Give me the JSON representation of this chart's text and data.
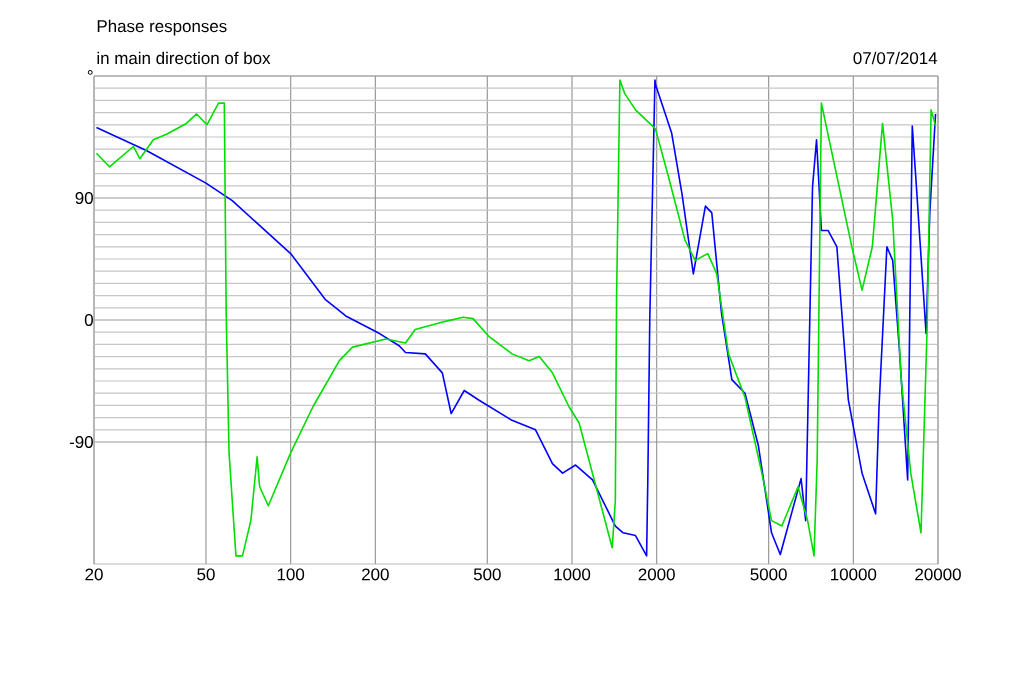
{
  "chart_data": {
    "type": "line",
    "title": "Phase responses",
    "subtitle": "in main direction of box",
    "annotations": [
      "07/07/2014"
    ],
    "log": "x",
    "grid": true,
    "xlim": [
      20,
      20000
    ],
    "ylim": [
      -180,
      180
    ],
    "xticks": [
      20,
      50,
      100,
      200,
      500,
      1000,
      2000,
      5000,
      10000,
      20000
    ],
    "yticks": [
      {
        "value": 180,
        "label": "°"
      },
      90,
      0,
      -90
    ],
    "series": [
      {
        "color": "#0000ff",
        "x": [
          20.4,
          30.7,
          50,
          62,
          100,
          133,
          157,
          207,
          243,
          256,
          301,
          346,
          372,
          414,
          466,
          612,
          742,
          852,
          926,
          1030,
          1183,
          1426,
          1520,
          1682,
          1842,
          1860,
          1890,
          1972,
          1980,
          2260,
          2460,
          2700,
          2980,
          3140,
          3400,
          3700,
          4120,
          4600,
          5120,
          5500,
          6520,
          6770,
          7160,
          7400,
          7700,
          8140,
          8740,
          9600,
          10740,
          12000,
          12340,
          13160,
          13800,
          14560,
          15600,
          16200,
          16700,
          18140,
          18700,
          19600
        ],
        "values": [
          142,
          125,
          101,
          88,
          49,
          15,
          3,
          -10,
          -19,
          -24,
          -25,
          -39,
          -69,
          -52,
          -59,
          -74,
          -81,
          -106,
          -113,
          -107,
          -118,
          -152,
          -157,
          -159,
          -174,
          -118,
          0,
          177,
          174,
          138,
          93,
          34,
          84,
          79,
          5,
          -44,
          -54,
          -93,
          -157,
          -173,
          -117,
          -148,
          98,
          133,
          66,
          66,
          54,
          -59,
          -113,
          -143,
          -64,
          54,
          44,
          -20,
          -118,
          143,
          103,
          -10,
          79,
          152
        ]
      },
      {
        "color": "#00dd00",
        "x": [
          20.4,
          22.7,
          27.6,
          29.1,
          32.5,
          36.2,
          42.6,
          46.3,
          50.4,
          55.4,
          58.1,
          59,
          60.4,
          63.9,
          67.4,
          72.2,
          76,
          77.6,
          83.3,
          100,
          120,
          149,
          166,
          218,
          256,
          277,
          355,
          410,
          445,
          506,
          612,
          704,
          765,
          852,
          976,
          1060,
          1390,
          1426,
          1440,
          1480,
          1540,
          1682,
          1980,
          2200,
          2520,
          2740,
          3040,
          3270,
          3600,
          4120,
          4730,
          5120,
          5570,
          6360,
          6880,
          7250,
          7440,
          7700,
          8600,
          9880,
          10740,
          11680,
          12700,
          13800,
          14800,
          16000,
          17400,
          18300,
          18900,
          19600
        ],
        "values": [
          123,
          113,
          128,
          119,
          133,
          137,
          145,
          152,
          144,
          160,
          160,
          5,
          -98,
          -174,
          -174,
          -148,
          -101,
          -123,
          -137,
          -98,
          -64,
          -30,
          -20,
          -14,
          -17,
          -7,
          -1,
          2,
          1,
          -12,
          -25,
          -30,
          -27,
          -39,
          -64,
          -76,
          -168,
          -133,
          15,
          177,
          167,
          155,
          141,
          106,
          59,
          44,
          49,
          34,
          -25,
          -57,
          -113,
          -148,
          -152,
          -123,
          -148,
          -174,
          -103,
          160,
          113,
          54,
          22,
          54,
          145,
          74,
          -44,
          -113,
          -157,
          -5,
          155,
          143
        ]
      }
    ]
  }
}
